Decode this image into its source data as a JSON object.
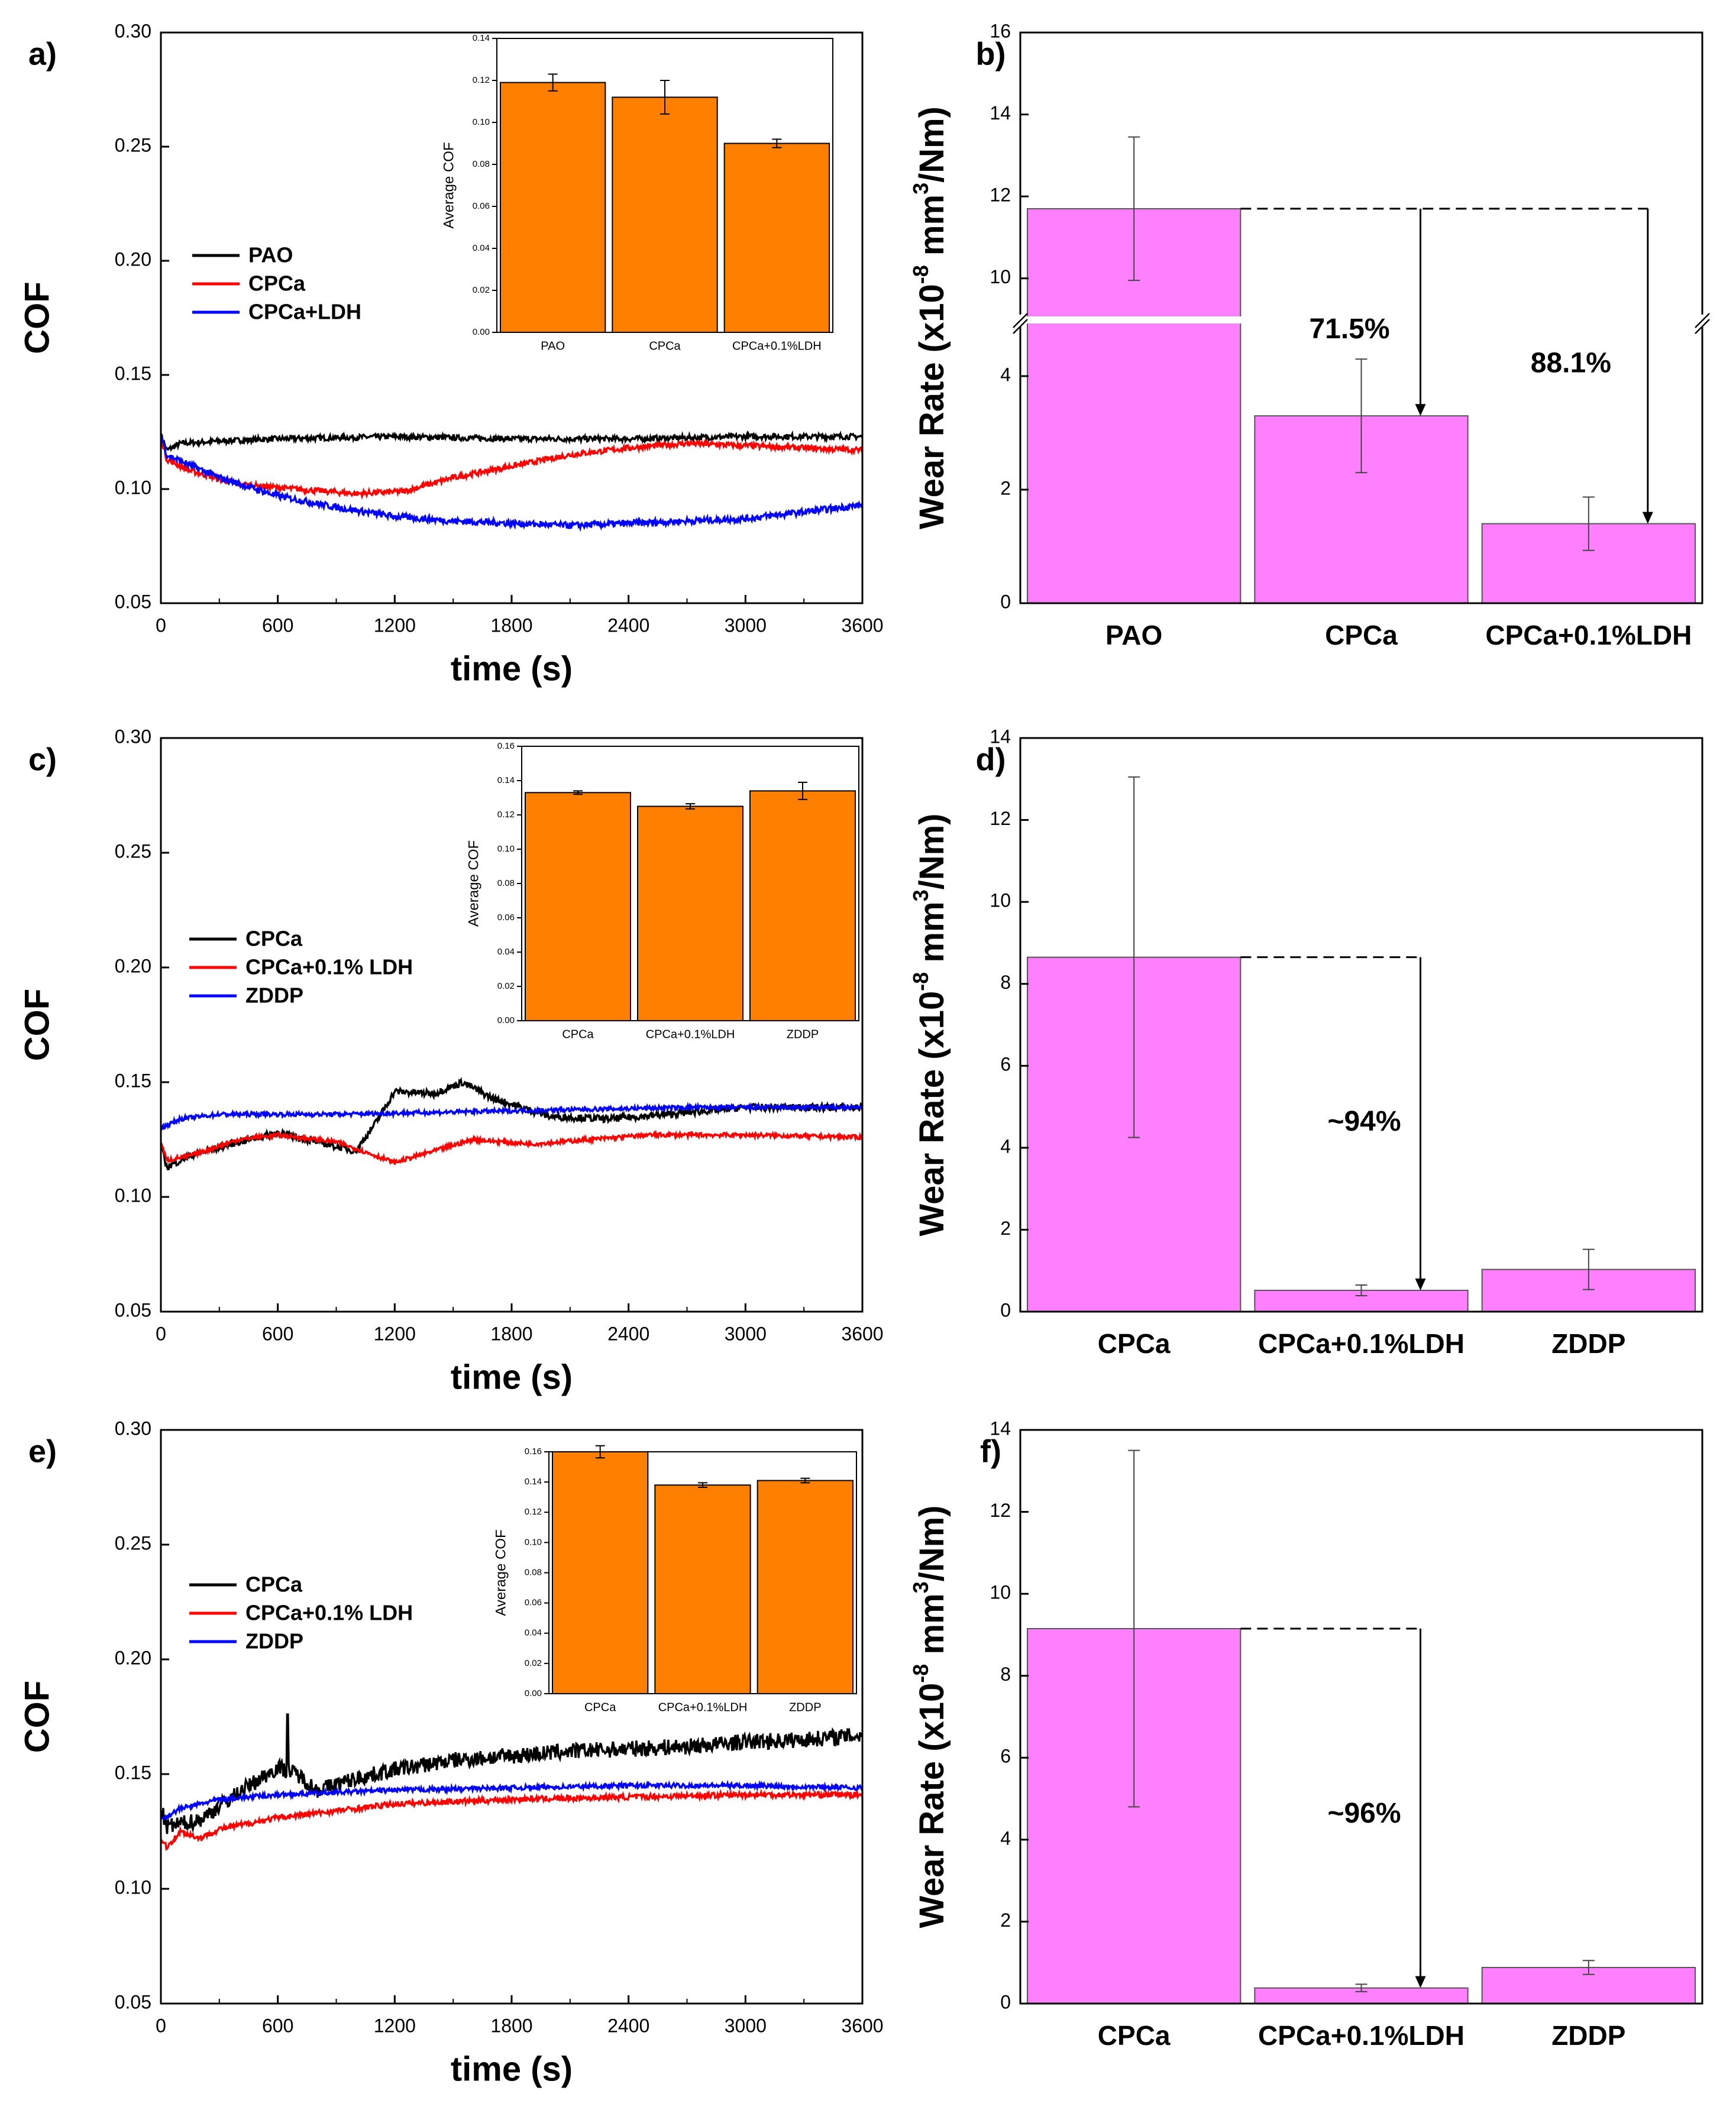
{
  "figure": {
    "description_panels": [
      "a)",
      "b)",
      "c)",
      "d)",
      "e)",
      "f)"
    ]
  },
  "colors": {
    "black": "#000000",
    "red": "#ff0000",
    "blue": "#0000ff",
    "orange": "#ff7f00",
    "magenta": "#ff80ff"
  },
  "chart_data": [
    {
      "panel_label": "a)",
      "type": "line",
      "xlabel": "time (s)",
      "ylabel": "COF",
      "xlim": [
        0,
        3600
      ],
      "ylim": [
        0.05,
        0.3
      ],
      "xticks": [
        0,
        600,
        1200,
        1800,
        2400,
        3000,
        3600
      ],
      "yticks": [
        "0.05",
        "0.10",
        "0.15",
        "0.20",
        "0.25",
        "0.30"
      ],
      "legend": [
        "PAO",
        "CPCa",
        "CPCa+LDH"
      ],
      "series": [
        {
          "name": "PAO",
          "color": "#000000",
          "noise": 0.0012,
          "points": [
            [
              0,
              0.124
            ],
            [
              30,
              0.117
            ],
            [
              100,
              0.12
            ],
            [
              300,
              0.121
            ],
            [
              600,
              0.122
            ],
            [
              1200,
              0.123
            ],
            [
              1800,
              0.122
            ],
            [
              2400,
              0.122
            ],
            [
              3000,
              0.123
            ],
            [
              3600,
              0.123
            ]
          ]
        },
        {
          "name": "CPCa",
          "color": "#ff0000",
          "noise": 0.0012,
          "points": [
            [
              0,
              0.123
            ],
            [
              30,
              0.113
            ],
            [
              150,
              0.108
            ],
            [
              400,
              0.102
            ],
            [
              700,
              0.1
            ],
            [
              1000,
              0.098
            ],
            [
              1250,
              0.099
            ],
            [
              1500,
              0.105
            ],
            [
              1800,
              0.11
            ],
            [
              2100,
              0.115
            ],
            [
              2400,
              0.118
            ],
            [
              2700,
              0.12
            ],
            [
              3000,
              0.119
            ],
            [
              3600,
              0.117
            ]
          ]
        },
        {
          "name": "CPCa+LDH",
          "color": "#0000ff",
          "noise": 0.0014,
          "points": [
            [
              0,
              0.124
            ],
            [
              30,
              0.115
            ],
            [
              300,
              0.105
            ],
            [
              600,
              0.097
            ],
            [
              900,
              0.092
            ],
            [
              1200,
              0.088
            ],
            [
              1500,
              0.086
            ],
            [
              1800,
              0.085
            ],
            [
              2100,
              0.084
            ],
            [
              2400,
              0.085
            ],
            [
              2700,
              0.086
            ],
            [
              3000,
              0.087
            ],
            [
              3300,
              0.09
            ],
            [
              3600,
              0.093
            ]
          ]
        }
      ],
      "inset": {
        "type": "bar",
        "ylabel": "Average COF",
        "ylim": [
          0,
          0.14
        ],
        "yticks": [
          "0.00",
          "0.02",
          "0.04",
          "0.06",
          "0.08",
          "0.10",
          "0.12",
          "0.14"
        ],
        "categories": [
          "PAO",
          "CPCa",
          "CPCa+0.1%LDH"
        ],
        "values": [
          0.119,
          0.112,
          0.09
        ],
        "errors": [
          0.004,
          0.008,
          0.002
        ]
      }
    },
    {
      "panel_label": "b)",
      "type": "bar",
      "ylabel": "Wear Rate (x10-8 mm3/Nm)",
      "ylabel_parts": [
        "Wear Rate (x10",
        "-8",
        " mm",
        "3",
        "/Nm)"
      ],
      "categories": [
        "PAO",
        "CPCa",
        "CPCa+0.1%LDH"
      ],
      "values": [
        11.7,
        3.3,
        1.4
      ],
      "errors": [
        1.75,
        1.0,
        0.47
      ],
      "broken_axis": {
        "lower": [
          0,
          5
        ],
        "upper": [
          9,
          16
        ]
      },
      "yticks_lower": [
        "0",
        "2",
        "4"
      ],
      "yticks_upper": [
        "10",
        "12",
        "14",
        "16"
      ],
      "annotations": [
        "71.5%",
        "88.1%"
      ]
    },
    {
      "panel_label": "c)",
      "type": "line",
      "xlabel": "time (s)",
      "ylabel": "COF",
      "xlim": [
        0,
        3600
      ],
      "ylim": [
        0.05,
        0.3
      ],
      "xticks": [
        0,
        600,
        1200,
        1800,
        2400,
        3000,
        3600
      ],
      "yticks": [
        "0.05",
        "0.10",
        "0.15",
        "0.20",
        "0.25",
        "0.30"
      ],
      "legend": [
        "CPCa",
        "CPCa+0.1% LDH",
        "ZDDP"
      ],
      "series": [
        {
          "name": "CPCa",
          "color": "#000000",
          "noise": 0.0015,
          "points": [
            [
              0,
              0.122
            ],
            [
              30,
              0.113
            ],
            [
              150,
              0.118
            ],
            [
              400,
              0.124
            ],
            [
              600,
              0.128
            ],
            [
              800,
              0.124
            ],
            [
              1000,
              0.12
            ],
            [
              1100,
              0.132
            ],
            [
              1200,
              0.146
            ],
            [
              1400,
              0.145
            ],
            [
              1550,
              0.15
            ],
            [
              1700,
              0.143
            ],
            [
              2000,
              0.135
            ],
            [
              2300,
              0.134
            ],
            [
              2600,
              0.136
            ],
            [
              3000,
              0.139
            ],
            [
              3300,
              0.139
            ],
            [
              3600,
              0.139
            ]
          ]
        },
        {
          "name": "CPCa+0.1% LDH",
          "color": "#ff0000",
          "noise": 0.0009,
          "points": [
            [
              0,
              0.124
            ],
            [
              30,
              0.116
            ],
            [
              150,
              0.118
            ],
            [
              400,
              0.125
            ],
            [
              600,
              0.127
            ],
            [
              900,
              0.124
            ],
            [
              1100,
              0.118
            ],
            [
              1200,
              0.115
            ],
            [
              1400,
              0.12
            ],
            [
              1600,
              0.125
            ],
            [
              1900,
              0.123
            ],
            [
              2200,
              0.125
            ],
            [
              2500,
              0.127
            ],
            [
              3000,
              0.127
            ],
            [
              3600,
              0.126
            ]
          ]
        },
        {
          "name": "ZDDP",
          "color": "#0000ff",
          "noise": 0.0009,
          "points": [
            [
              0,
              0.13
            ],
            [
              100,
              0.134
            ],
            [
              300,
              0.136
            ],
            [
              900,
              0.136
            ],
            [
              1500,
              0.137
            ],
            [
              2100,
              0.138
            ],
            [
              2700,
              0.139
            ],
            [
              3600,
              0.139
            ]
          ]
        }
      ],
      "inset": {
        "type": "bar",
        "ylabel": "Average COF",
        "ylim": [
          0,
          0.16
        ],
        "yticks": [
          "0.00",
          "0.02",
          "0.04",
          "0.06",
          "0.08",
          "0.10",
          "0.12",
          "0.14",
          "0.16"
        ],
        "categories": [
          "CPCa",
          "CPCa+0.1%LDH",
          "ZDDP"
        ],
        "values": [
          0.133,
          0.125,
          0.134
        ],
        "errors": [
          0.001,
          0.0015,
          0.005
        ]
      }
    },
    {
      "panel_label": "d)",
      "type": "bar",
      "ylabel": "Wear Rate (x10-8 mm3/Nm)",
      "ylabel_parts": [
        "Wear Rate (x10",
        "-8",
        " mm",
        "3",
        "/Nm)"
      ],
      "categories": [
        "CPCa",
        "CPCa+0.1%LDH",
        "ZDDP"
      ],
      "values": [
        8.65,
        0.52,
        1.03
      ],
      "errors": [
        4.4,
        0.13,
        0.49
      ],
      "ylim": [
        0,
        14
      ],
      "yticks": [
        "0",
        "2",
        "4",
        "6",
        "8",
        "10",
        "12",
        "14"
      ],
      "annotations": [
        "~94%"
      ]
    },
    {
      "panel_label": "e)",
      "type": "line",
      "xlabel": "time (s)",
      "ylabel": "COF",
      "xlim": [
        0,
        3600
      ],
      "ylim": [
        0.05,
        0.3
      ],
      "xticks": [
        0,
        600,
        1200,
        1800,
        2400,
        3000,
        3600
      ],
      "yticks": [
        "0.05",
        "0.10",
        "0.15",
        "0.20",
        "0.25",
        "0.30"
      ],
      "legend": [
        "CPCa",
        "CPCa+0.1% LDH",
        "ZDDP"
      ],
      "series": [
        {
          "name": "CPCa",
          "color": "#000000",
          "noise": 0.0035,
          "points": [
            [
              0,
              0.135
            ],
            [
              30,
              0.127
            ],
            [
              200,
              0.13
            ],
            [
              400,
              0.142
            ],
            [
              600,
              0.153
            ],
            [
              700,
              0.15
            ],
            [
              800,
              0.143
            ],
            [
              1000,
              0.148
            ],
            [
              1200,
              0.152
            ],
            [
              1500,
              0.156
            ],
            [
              1800,
              0.158
            ],
            [
              2100,
              0.16
            ],
            [
              2400,
              0.161
            ],
            [
              2700,
              0.162
            ],
            [
              3000,
              0.164
            ],
            [
              3300,
              0.165
            ],
            [
              3600,
              0.167
            ]
          ]
        },
        {
          "name": "CPCa+0.1% LDH",
          "color": "#ff0000",
          "noise": 0.0012,
          "points": [
            [
              0,
              0.122
            ],
            [
              30,
              0.118
            ],
            [
              100,
              0.125
            ],
            [
              200,
              0.122
            ],
            [
              300,
              0.126
            ],
            [
              600,
              0.131
            ],
            [
              900,
              0.134
            ],
            [
              1200,
              0.137
            ],
            [
              1800,
              0.139
            ],
            [
              2400,
              0.14
            ],
            [
              3000,
              0.141
            ],
            [
              3600,
              0.141
            ]
          ]
        },
        {
          "name": "ZDDP",
          "color": "#0000ff",
          "noise": 0.001,
          "points": [
            [
              0,
              0.13
            ],
            [
              100,
              0.135
            ],
            [
              300,
              0.139
            ],
            [
              600,
              0.141
            ],
            [
              900,
              0.142
            ],
            [
              1200,
              0.143
            ],
            [
              1800,
              0.144
            ],
            [
              2400,
              0.145
            ],
            [
              3000,
              0.145
            ],
            [
              3600,
              0.144
            ]
          ]
        }
      ],
      "spikes": [
        {
          "series": 0,
          "x": 650,
          "y": 0.176
        }
      ],
      "inset": {
        "type": "bar",
        "ylabel": "Average COF",
        "ylim": [
          0,
          0.16
        ],
        "yticks": [
          "0.00",
          "0.02",
          "0.04",
          "0.06",
          "0.08",
          "0.10",
          "0.12",
          "0.14",
          "0.16"
        ],
        "categories": [
          "CPCa",
          "CPCa+0.1%LDH",
          "ZDDP"
        ],
        "values": [
          0.16,
          0.138,
          0.141
        ],
        "errors": [
          0.004,
          0.0015,
          0.0015
        ]
      }
    },
    {
      "panel_label": "f)",
      "type": "bar",
      "ylabel": "Wear Rate (x10-8 mm3/Nm)",
      "ylabel_parts": [
        "Wear Rate (x10",
        "-8",
        " mm",
        "3",
        "/Nm)"
      ],
      "categories": [
        "CPCa",
        "CPCa+0.1%LDH",
        "ZDDP"
      ],
      "values": [
        9.15,
        0.38,
        0.88
      ],
      "errors": [
        4.35,
        0.09,
        0.17
      ],
      "ylim": [
        0,
        14
      ],
      "yticks": [
        "0",
        "2",
        "4",
        "6",
        "8",
        "10",
        "12",
        "14"
      ],
      "annotations": [
        "~96%"
      ]
    }
  ]
}
